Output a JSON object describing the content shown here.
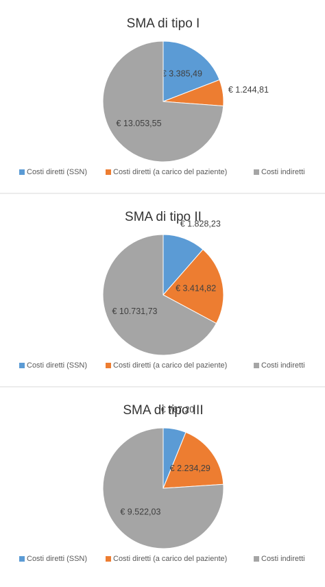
{
  "chart_data": [
    {
      "type": "pie",
      "title": "SMA di tipo I",
      "categories": [
        "Costi diretti (SSN)",
        "Costi diretti (a carico del paziente)",
        "Costi indiretti"
      ],
      "values": [
        3385.49,
        1244.81,
        13053.55
      ],
      "value_labels": [
        "€ 3.385,49",
        "€ 1.244,81",
        "€ 13.053,55"
      ],
      "colors": [
        "#5b9bd5",
        "#ed7d31",
        "#a5a5a5"
      ]
    },
    {
      "type": "pie",
      "title": "SMA di tipo II",
      "categories": [
        "Costi diretti (SSN)",
        "Costi diretti (a carico del paziente)",
        "Costi indiretti"
      ],
      "values": [
        1828.23,
        3414.82,
        10731.73
      ],
      "value_labels": [
        "€ 1.828,23",
        "€ 3.414,82",
        "€ 10.731,73"
      ],
      "colors": [
        "#5b9bd5",
        "#ed7d31",
        "#a5a5a5"
      ]
    },
    {
      "type": "pie",
      "title": "SMA di tipo III",
      "categories": [
        "Costi diretti (SSN)",
        "Costi diretti (a carico del paziente)",
        "Costi indiretti"
      ],
      "values": [
        767.2,
        2234.29,
        9522.03
      ],
      "value_labels": [
        "€ 767,20",
        "€ 2.234,29",
        "€ 9.522,03"
      ],
      "colors": [
        "#5b9bd5",
        "#ed7d31",
        "#a5a5a5"
      ]
    }
  ]
}
